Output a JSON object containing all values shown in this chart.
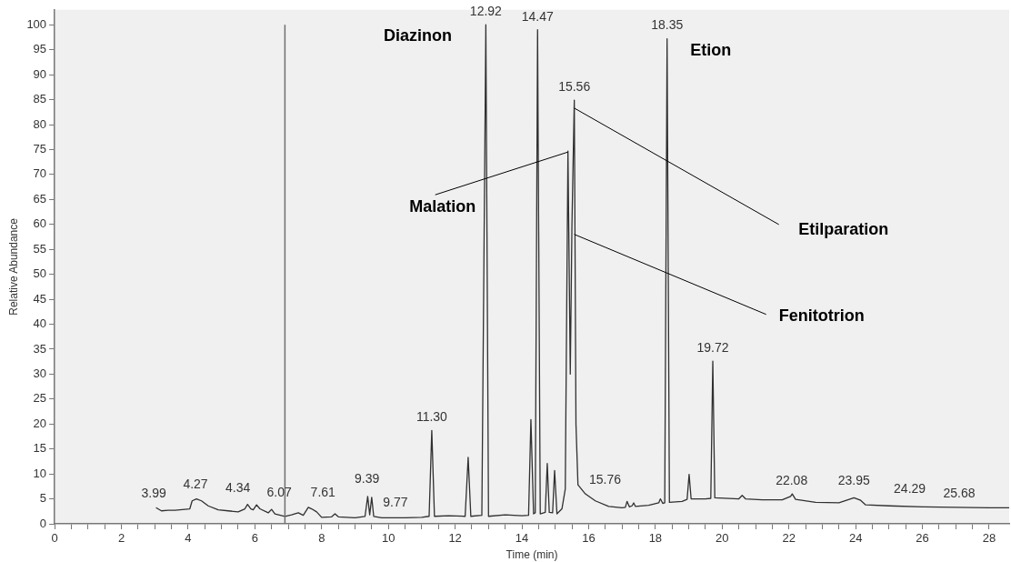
{
  "chart_data": {
    "type": "line",
    "xlabel": "Time (min)",
    "ylabel": "Relative Abundance",
    "marker": "none",
    "line_style": "solid",
    "grid": false,
    "legend": false,
    "xlim": [
      0,
      28.6
    ],
    "ylim": [
      0,
      103
    ],
    "xticks": [
      0,
      {
        "value": 0.5,
        "label": null
      },
      {
        "value": 1,
        "label": null
      },
      {
        "value": 1.5,
        "label": null
      },
      2,
      {
        "value": 2.5,
        "label": null
      },
      {
        "value": 3,
        "label": null
      },
      {
        "value": 3.5,
        "label": null
      },
      4,
      {
        "value": 4.5,
        "label": null
      },
      {
        "value": 5,
        "label": null
      },
      {
        "value": 5.5,
        "label": null
      },
      6,
      {
        "value": 6.5,
        "label": null
      },
      {
        "value": 7,
        "label": null
      },
      {
        "value": 7.5,
        "label": null
      },
      8,
      {
        "value": 8.5,
        "label": null
      },
      {
        "value": 9,
        "label": null
      },
      {
        "value": 9.5,
        "label": null
      },
      10,
      {
        "value": 10.5,
        "label": null
      },
      {
        "value": 11,
        "label": null
      },
      {
        "value": 11.5,
        "label": null
      },
      12,
      {
        "value": 12.5,
        "label": null
      },
      {
        "value": 13,
        "label": null
      },
      {
        "value": 13.5,
        "label": null
      },
      14,
      {
        "value": 14.5,
        "label": null
      },
      {
        "value": 15,
        "label": null
      },
      {
        "value": 15.5,
        "label": null
      },
      16,
      {
        "value": 16.5,
        "label": null
      },
      {
        "value": 17,
        "label": null
      },
      {
        "value": 17.5,
        "label": null
      },
      18,
      {
        "value": 18.5,
        "label": null
      },
      {
        "value": 19,
        "label": null
      },
      {
        "value": 19.5,
        "label": null
      },
      20,
      {
        "value": 20.5,
        "label": null
      },
      {
        "value": 21,
        "label": null
      },
      {
        "value": 21.5,
        "label": null
      },
      22,
      {
        "value": 22.5,
        "label": null
      },
      {
        "value": 23,
        "label": null
      },
      {
        "value": 23.5,
        "label": null
      },
      24,
      {
        "value": 24.5,
        "label": null
      },
      {
        "value": 25,
        "label": null
      },
      {
        "value": 25.5,
        "label": null
      },
      26,
      {
        "value": 26.5,
        "label": null
      },
      {
        "value": 27,
        "label": null
      },
      {
        "value": 27.5,
        "label": null
      },
      28
    ],
    "yticks": [
      0,
      5,
      10,
      15,
      20,
      25,
      30,
      35,
      40,
      45,
      50,
      55,
      60,
      65,
      70,
      75,
      80,
      85,
      90,
      95,
      100
    ],
    "ref_lines": [
      {
        "axis": "x",
        "value": 6.9,
        "color": "#707070"
      }
    ],
    "series": [
      {
        "color": "#303030",
        "x": [
          3.05,
          3.2,
          3.4,
          3.6,
          3.9,
          4.05,
          4.12,
          4.25,
          4.4,
          4.6,
          4.9,
          5.2,
          5.5,
          5.7,
          5.78,
          5.88,
          5.95,
          6.05,
          6.15,
          6.4,
          6.5,
          6.6,
          6.9,
          7.1,
          7.3,
          7.45,
          7.6,
          7.7,
          7.85,
          8.0,
          8.3,
          8.4,
          8.5,
          9.0,
          9.3,
          9.38,
          9.44,
          9.5,
          9.56,
          9.8,
          10.5,
          11.0,
          11.22,
          11.3,
          11.38,
          11.8,
          12.3,
          12.39,
          12.47,
          12.8,
          12.92,
          13.0,
          13.5,
          14.0,
          14.2,
          14.27,
          14.35,
          14.4,
          14.47,
          14.55,
          14.7,
          14.76,
          14.82,
          14.92,
          14.98,
          15.05,
          15.2,
          15.3,
          15.38,
          15.45,
          15.5,
          15.57,
          15.62,
          15.68,
          15.9,
          16.2,
          16.6,
          17.0,
          17.1,
          17.15,
          17.22,
          17.3,
          17.35,
          17.4,
          17.8,
          18.1,
          18.15,
          18.22,
          18.28,
          18.35,
          18.42,
          18.8,
          18.95,
          19.01,
          19.07,
          19.5,
          19.66,
          19.72,
          19.78,
          20.5,
          20.6,
          20.7,
          21.2,
          21.8,
          22.05,
          22.1,
          22.2,
          22.8,
          23.5,
          23.95,
          24.15,
          24.3,
          25,
          26,
          27,
          28,
          28.6
        ],
        "values": [
          3.2,
          2.6,
          2.7,
          2.7,
          2.9,
          3.0,
          4.6,
          5.0,
          4.6,
          3.6,
          2.8,
          2.6,
          2.4,
          3.0,
          3.9,
          3.0,
          2.8,
          3.8,
          3.0,
          2.2,
          2.9,
          2.0,
          1.5,
          1.8,
          2.2,
          1.7,
          3.3,
          3.0,
          2.4,
          1.3,
          1.4,
          2.0,
          1.4,
          1.2,
          1.5,
          5.5,
          1.8,
          5.3,
          1.5,
          1.2,
          1.2,
          1.3,
          1.5,
          18.7,
          1.5,
          1.6,
          1.5,
          13.3,
          1.5,
          1.7,
          100,
          1.5,
          1.8,
          1.6,
          1.7,
          20.9,
          2.0,
          2.2,
          99,
          2.0,
          2.3,
          12.1,
          2.3,
          2.2,
          10.7,
          2.0,
          3.0,
          7,
          74.7,
          30,
          60,
          84.9,
          20,
          7.8,
          6.0,
          4.6,
          3.5,
          3.2,
          3.3,
          4.5,
          3.4,
          3.6,
          4.2,
          3.5,
          3.7,
          4.2,
          5.0,
          4.1,
          4.2,
          97.2,
          4.3,
          4.5,
          4.9,
          9.9,
          5.0,
          5.0,
          5.1,
          32.6,
          5.2,
          5.0,
          5.7,
          5.0,
          4.8,
          4.8,
          5.5,
          6.0,
          4.9,
          4.3,
          4.2,
          5.2,
          4.7,
          3.8,
          3.6,
          3.4,
          3.3,
          3.2,
          3.2
        ]
      }
    ],
    "annotations": [
      {
        "text": "3.99",
        "x": 2.97,
        "y": 3.5
      },
      "4.27",
      "4.34",
      "6.07",
      "7.61",
      {
        "text": "9.39",
        "x": 9.36,
        "y": 6.3
      },
      "9.77",
      {
        "text": "11.30",
        "x": 11.3,
        "y": 18.7
      },
      {
        "text": "12.92",
        "x": 12.92,
        "y": 100
      },
      {
        "text": "14.47",
        "x": 14.47,
        "y": 99
      },
      {
        "text": "15.56",
        "x": 15.57,
        "y": 84.9
      },
      "15.76",
      {
        "text": "18.35",
        "x": 18.35,
        "y": 97.2
      },
      {
        "text": "19.72",
        "x": 19.72,
        "y": 32.6
      },
      {
        "text": "22.08",
        "x": 22.08,
        "y": 6.0
      },
      {
        "text": "23.95",
        "x": 23.95,
        "y": 5.9
      },
      "24.29",
      "25.68",
      {
        "text": "Diazinon",
        "x": 12.92,
        "y": 100
      },
      {
        "text": "Etion",
        "x": 18.35,
        "y": 97.2
      },
      {
        "text": "Malation",
        "x": 15.38,
        "y": 74.5
      },
      {
        "text": "Etilparation",
        "x": 15.57,
        "y": 83.3
      },
      {
        "text": "Fenitotrion",
        "x": 15.57,
        "y": 58
      }
    ]
  }
}
